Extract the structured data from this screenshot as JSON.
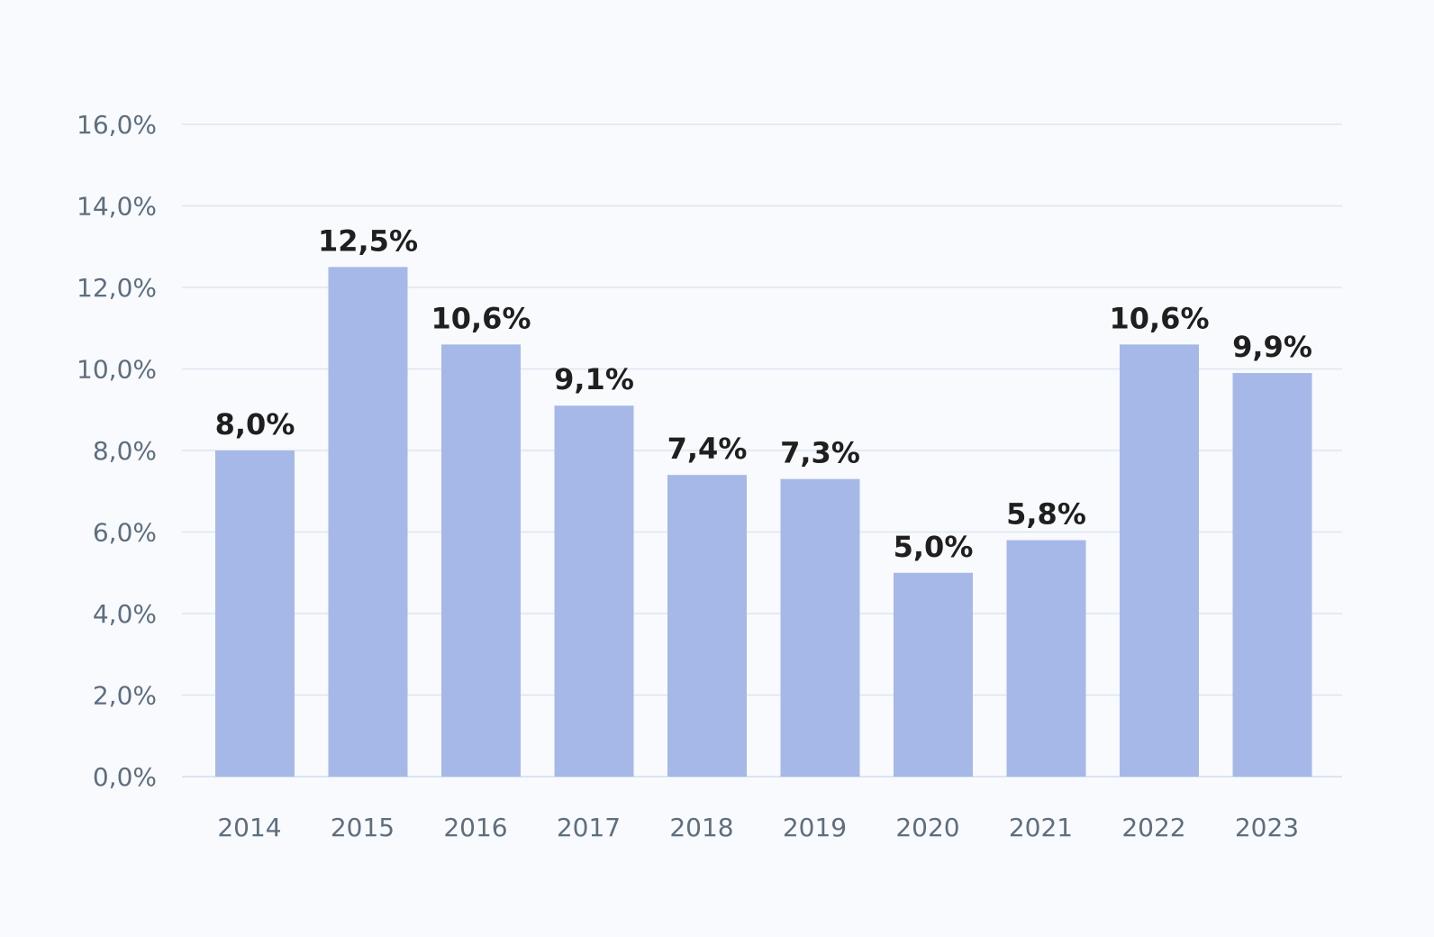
{
  "chart_data": {
    "type": "bar",
    "title": "",
    "xlabel": "",
    "ylabel": "",
    "categories": [
      "2014",
      "2015",
      "2016",
      "2017",
      "2018",
      "2019",
      "2020",
      "2021",
      "2022",
      "2023"
    ],
    "values": [
      8.0,
      12.5,
      10.6,
      9.1,
      7.4,
      7.3,
      5.0,
      5.8,
      10.6,
      9.9
    ],
    "data_labels": [
      "8,0%",
      "12,5%",
      "10,6%",
      "9,1%",
      "7,4%",
      "7,3%",
      "5,0%",
      "5,8%",
      "10,6%",
      "9,9%"
    ],
    "ylim": [
      0,
      16
    ],
    "yticks": [
      0,
      2,
      4,
      6,
      8,
      10,
      12,
      14,
      16
    ],
    "ytick_labels": [
      "0,0%",
      "2,0%",
      "4,0%",
      "6,0%",
      "8,0%",
      "10,0%",
      "12,0%",
      "14,0%",
      "16,0%"
    ],
    "grid": true,
    "legend": "none",
    "colors": {
      "bar": "#a6b8e8",
      "background": "#f8fafd",
      "grid": "#dde6f1",
      "tick_text": "#5e6e7e",
      "label_text": "#1f1f1f"
    }
  }
}
